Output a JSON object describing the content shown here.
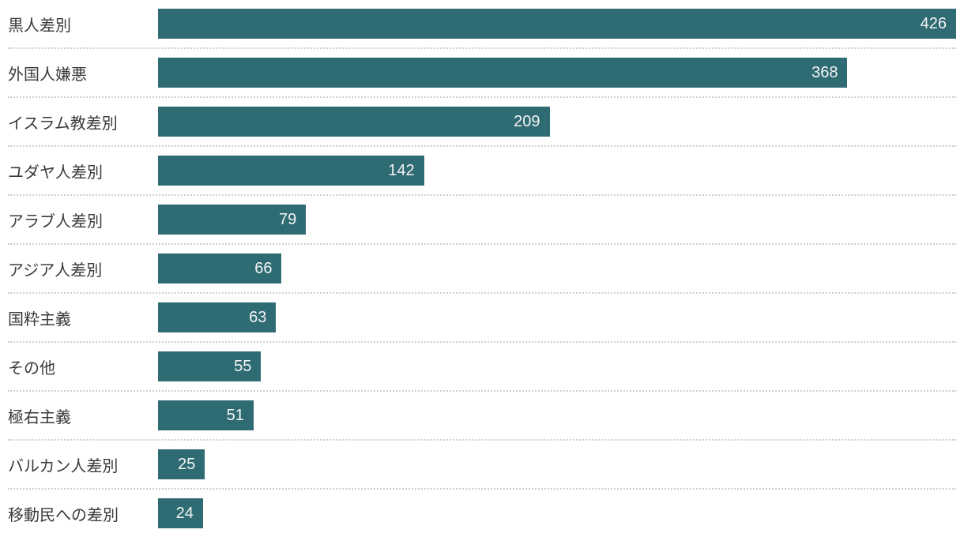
{
  "chart_data": {
    "type": "bar",
    "orientation": "horizontal",
    "title": "",
    "xlabel": "",
    "ylabel": "",
    "xlim": [
      0,
      426
    ],
    "grid": false,
    "legend_position": "none",
    "value_labels": "inside-end",
    "categories": [
      "黒人差別",
      "外国人嫌悪",
      "イスラム教差別",
      "ユダヤ人差別",
      "アラブ人差別",
      "アジア人差別",
      "国粋主義",
      "その他",
      "極右主義",
      "バルカン人差別",
      "移動民への差別"
    ],
    "values": [
      426,
      368,
      209,
      142,
      79,
      66,
      63,
      55,
      51,
      25,
      24
    ]
  },
  "style": {
    "bar_color": "#2e6b73",
    "label_color": "#3a3a3a",
    "value_color": "#f4f4f4",
    "separator_color": "#cfcfcf",
    "background": "#ffffff"
  }
}
